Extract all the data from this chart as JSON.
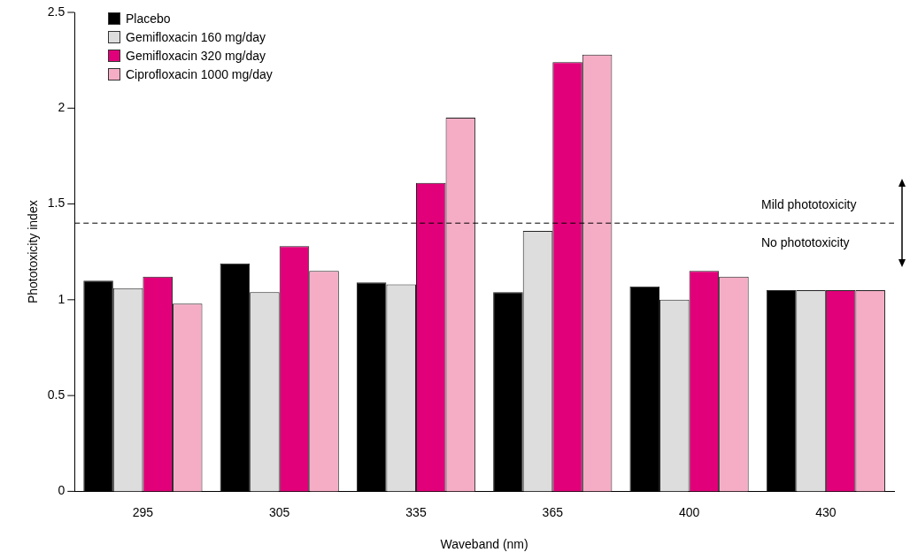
{
  "chart_data": {
    "type": "bar",
    "xlabel": "Waveband (nm)",
    "ylabel": "Phototoxicity index",
    "categories": [
      "295",
      "305",
      "335",
      "365",
      "400",
      "430"
    ],
    "series": [
      {
        "name": "Placebo",
        "color": "#000000",
        "values": [
          1.1,
          1.19,
          1.09,
          1.04,
          1.07,
          1.05
        ]
      },
      {
        "name": "Gemifloxacin 160 mg/day",
        "color": "#dddddd",
        "values": [
          1.06,
          1.04,
          1.08,
          1.36,
          1.0,
          1.05
        ]
      },
      {
        "name": "Gemifloxacin 320 mg/day",
        "color": "#e2007a",
        "values": [
          1.12,
          1.28,
          1.61,
          2.24,
          1.15,
          1.05
        ]
      },
      {
        "name": "Ciprofloxacin 1000 mg/day",
        "color": "#f5adc6",
        "values": [
          0.98,
          1.15,
          1.95,
          2.28,
          1.12,
          1.05
        ]
      }
    ],
    "ylim": [
      0,
      2.5
    ],
    "yticks": [
      0,
      0.5,
      1,
      1.5,
      2,
      2.5
    ],
    "grid": false,
    "legend": "top left",
    "ref_lines": [
      {
        "axis": "y",
        "value": 1.4,
        "line_style": "dashed",
        "color": "#000000"
      }
    ],
    "annotations": [
      "Mild phototoxicity",
      "No phototoxicity"
    ]
  }
}
